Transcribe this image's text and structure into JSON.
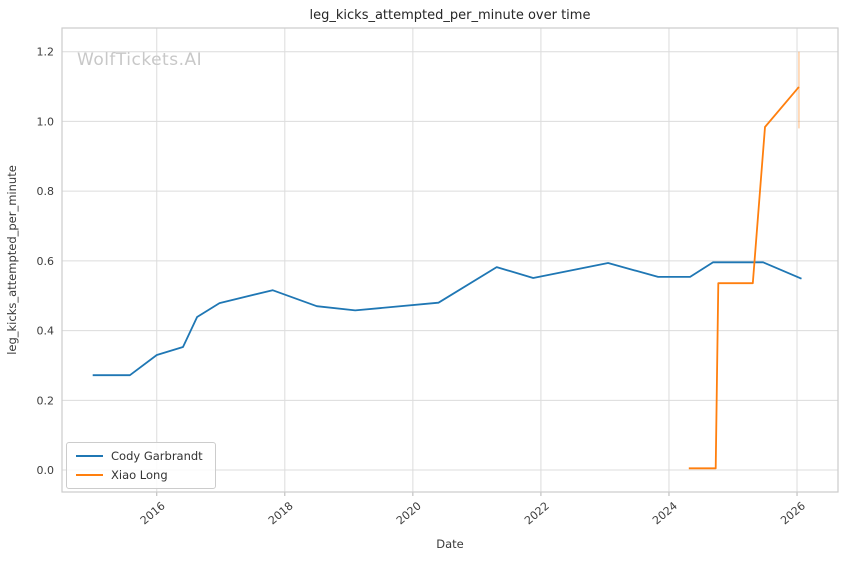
{
  "watermark": "WolfTickets.AI",
  "chart_data": {
    "type": "line",
    "title": "leg_kicks_attempted_per_minute over time",
    "xlabel": "Date",
    "ylabel": "leg_kicks_attempted_per_minute",
    "xlim": [
      2014.52,
      2026.64
    ],
    "ylim": [
      -0.063,
      1.268
    ],
    "x_ticks": [
      2016,
      2018,
      2020,
      2022,
      2024,
      2026
    ],
    "y_ticks": [
      0.0,
      0.2,
      0.4,
      0.6,
      0.8,
      1.0,
      1.2
    ],
    "grid": true,
    "legend_position": "lower left",
    "series": [
      {
        "name": "Cody Garbrandt",
        "color": "#1f77b4",
        "points": [
          [
            2015.0,
            0.272
          ],
          [
            2015.58,
            0.272
          ],
          [
            2016.0,
            0.33
          ],
          [
            2016.41,
            0.353
          ],
          [
            2016.63,
            0.439
          ],
          [
            2016.98,
            0.479
          ],
          [
            2017.81,
            0.516
          ],
          [
            2018.5,
            0.47
          ],
          [
            2019.1,
            0.458
          ],
          [
            2020.4,
            0.48
          ],
          [
            2021.31,
            0.582
          ],
          [
            2021.88,
            0.551
          ],
          [
            2023.05,
            0.594
          ],
          [
            2023.83,
            0.554
          ],
          [
            2024.33,
            0.554
          ],
          [
            2024.69,
            0.596
          ],
          [
            2025.47,
            0.596
          ],
          [
            2026.07,
            0.549
          ]
        ]
      },
      {
        "name": "Xiao Long",
        "color": "#ff7f0e",
        "points": [
          [
            2024.31,
            0.005
          ],
          [
            2024.73,
            0.005
          ],
          [
            2024.77,
            0.536
          ],
          [
            2025.31,
            0.536
          ],
          [
            2025.5,
            0.984
          ],
          [
            2026.03,
            1.099
          ]
        ],
        "error_bar": {
          "x": 2026.03,
          "low": 0.98,
          "high": 1.2
        }
      }
    ]
  }
}
